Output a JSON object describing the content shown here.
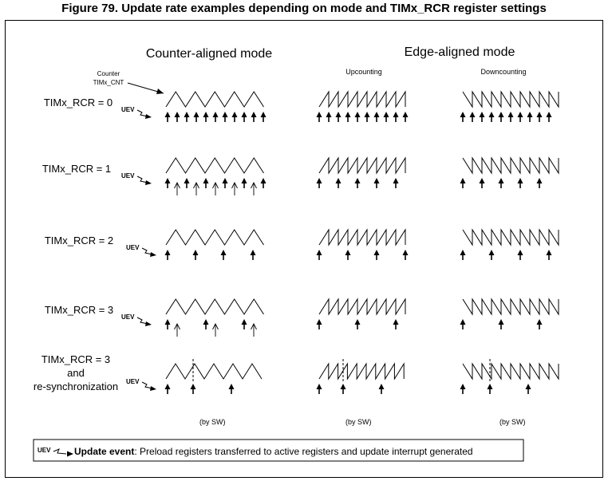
{
  "figure_title": "Figure 79. Update rate examples depending on mode and TIMx_RCR register settings",
  "headers": {
    "counter_aligned": "Counter-aligned mode",
    "edge_aligned": "Edge-aligned mode",
    "upcounting": "Upcounting",
    "downcounting": "Downcounting"
  },
  "counter_label": [
    "Counter",
    "TIMx_CNT"
  ],
  "uev_tag": "UEV",
  "rows": [
    {
      "label_lines": [
        "TIMx_RCR = 0"
      ]
    },
    {
      "label_lines": [
        "TIMx_RCR = 1"
      ]
    },
    {
      "label_lines": [
        "TIMx_RCR = 2"
      ]
    },
    {
      "label_lines": [
        "TIMx_RCR = 3"
      ]
    },
    {
      "label_lines": [
        "TIMx_RCR = 3",
        "and",
        "re-synchronization"
      ]
    }
  ],
  "by_sw": "(by SW)",
  "legend": {
    "tag": "UEV",
    "bold": "Update event",
    "text": ": Preload registers transferred to active registers and update interrupt generated"
  }
}
